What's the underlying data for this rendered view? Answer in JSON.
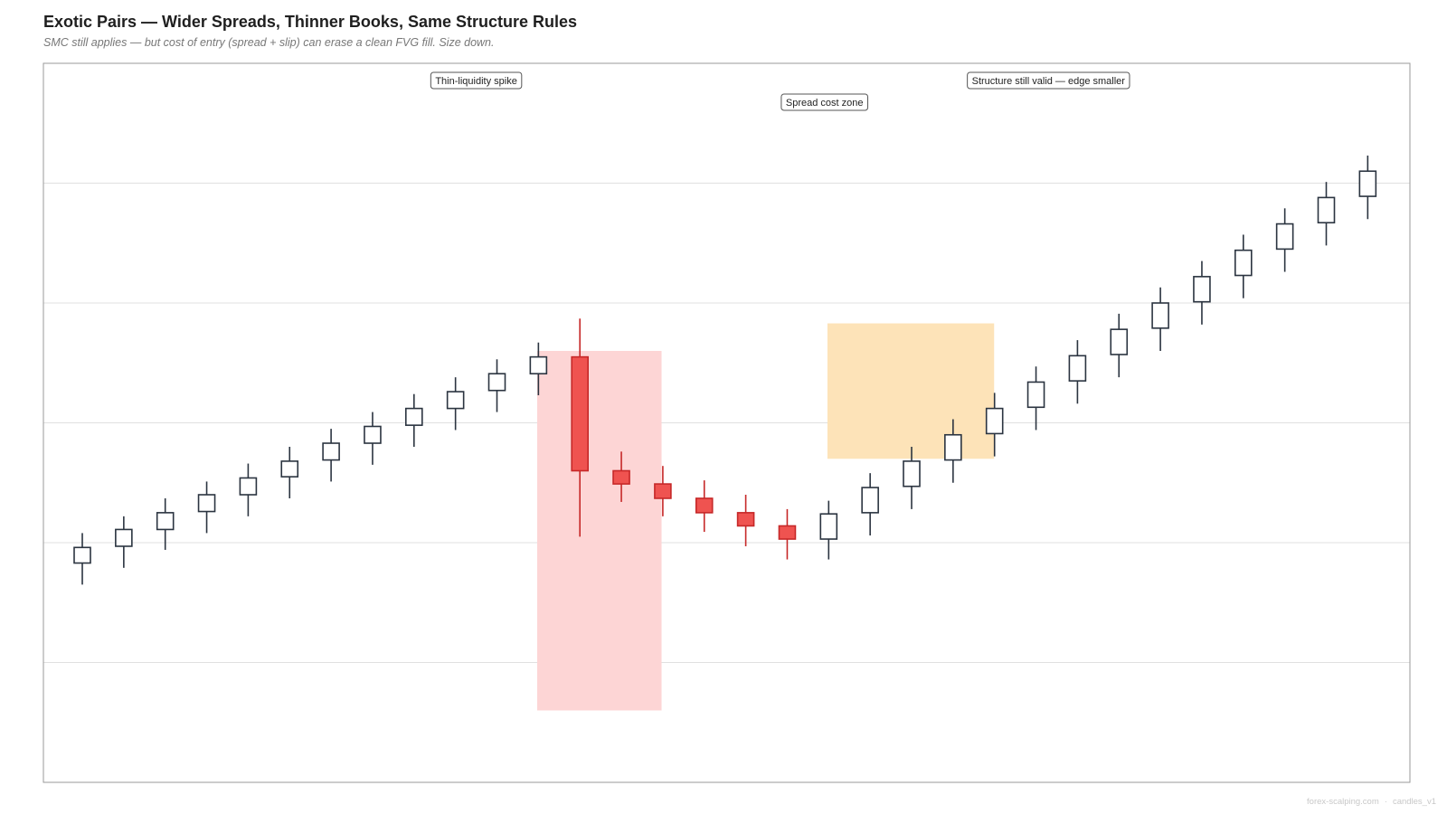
{
  "header": {
    "title": "Exotic Pairs — Wider Spreads, Thinner Books, Same Structure Rules",
    "subtitle": "SMC still applies — but cost of entry (spread + slip) can erase a clean FVG fill. Size down."
  },
  "footer": {
    "site": "forex-scalping.com",
    "tag": "candles_v1"
  },
  "colors": {
    "bull_body": "#ffffff",
    "bear_body": "#ef5350",
    "bull_stroke": "#2b3440",
    "bear_stroke": "#c62828",
    "spike_zone": "#fdd5d5",
    "spread_zone": "#fde3b8",
    "grid": "#e0e0e0",
    "frame": "#9a9a9a"
  },
  "chart_data": {
    "type": "candlestick",
    "title": "Exotic Pairs — Wider Spreads, Thinner Books, Same Structure Rules",
    "subtitle": "SMC still applies — but cost of entry (spread + slip) can erase a clean FVG fill. Size down.",
    "ylim": [
      0,
      6
    ],
    "grid": {
      "horizontal": true,
      "vertical": false
    },
    "y_gridlines": [
      1,
      2,
      3,
      4,
      5
    ],
    "candles": [
      {
        "i": 0,
        "o": 1.83,
        "h": 2.08,
        "l": 1.65,
        "c": 1.96
      },
      {
        "i": 1,
        "o": 1.97,
        "h": 2.22,
        "l": 1.79,
        "c": 2.11
      },
      {
        "i": 2,
        "o": 2.11,
        "h": 2.37,
        "l": 1.94,
        "c": 2.25
      },
      {
        "i": 3,
        "o": 2.26,
        "h": 2.51,
        "l": 2.08,
        "c": 2.4
      },
      {
        "i": 4,
        "o": 2.4,
        "h": 2.66,
        "l": 2.22,
        "c": 2.54
      },
      {
        "i": 5,
        "o": 2.55,
        "h": 2.8,
        "l": 2.37,
        "c": 2.68
      },
      {
        "i": 6,
        "o": 2.69,
        "h": 2.95,
        "l": 2.51,
        "c": 2.83
      },
      {
        "i": 7,
        "o": 2.83,
        "h": 3.09,
        "l": 2.65,
        "c": 2.97
      },
      {
        "i": 8,
        "o": 2.98,
        "h": 3.24,
        "l": 2.8,
        "c": 3.12
      },
      {
        "i": 9,
        "o": 3.12,
        "h": 3.38,
        "l": 2.94,
        "c": 3.26
      },
      {
        "i": 10,
        "o": 3.27,
        "h": 3.53,
        "l": 3.09,
        "c": 3.41
      },
      {
        "i": 11,
        "o": 3.41,
        "h": 3.67,
        "l": 3.23,
        "c": 3.55
      },
      {
        "i": 12,
        "o": 3.55,
        "h": 3.87,
        "l": 2.05,
        "c": 2.6
      },
      {
        "i": 13,
        "o": 2.6,
        "h": 2.76,
        "l": 2.34,
        "c": 2.49
      },
      {
        "i": 14,
        "o": 2.49,
        "h": 2.64,
        "l": 2.22,
        "c": 2.37
      },
      {
        "i": 15,
        "o": 2.37,
        "h": 2.52,
        "l": 2.09,
        "c": 2.25
      },
      {
        "i": 16,
        "o": 2.25,
        "h": 2.4,
        "l": 1.97,
        "c": 2.14
      },
      {
        "i": 17,
        "o": 2.14,
        "h": 2.28,
        "l": 1.86,
        "c": 2.03
      },
      {
        "i": 18,
        "o": 2.03,
        "h": 2.35,
        "l": 1.86,
        "c": 2.24
      },
      {
        "i": 19,
        "o": 2.25,
        "h": 2.58,
        "l": 2.06,
        "c": 2.46
      },
      {
        "i": 20,
        "o": 2.47,
        "h": 2.8,
        "l": 2.28,
        "c": 2.68
      },
      {
        "i": 21,
        "o": 2.69,
        "h": 3.03,
        "l": 2.5,
        "c": 2.9
      },
      {
        "i": 22,
        "o": 2.91,
        "h": 3.25,
        "l": 2.72,
        "c": 3.12
      },
      {
        "i": 23,
        "o": 3.13,
        "h": 3.47,
        "l": 2.94,
        "c": 3.34
      },
      {
        "i": 24,
        "o": 3.35,
        "h": 3.69,
        "l": 3.16,
        "c": 3.56
      },
      {
        "i": 25,
        "o": 3.57,
        "h": 3.91,
        "l": 3.38,
        "c": 3.78
      },
      {
        "i": 26,
        "o": 3.79,
        "h": 4.13,
        "l": 3.6,
        "c": 4.0
      },
      {
        "i": 27,
        "o": 4.01,
        "h": 4.35,
        "l": 3.82,
        "c": 4.22
      },
      {
        "i": 28,
        "o": 4.23,
        "h": 4.57,
        "l": 4.04,
        "c": 4.44
      },
      {
        "i": 29,
        "o": 4.45,
        "h": 4.79,
        "l": 4.26,
        "c": 4.66
      },
      {
        "i": 30,
        "o": 4.67,
        "h": 5.01,
        "l": 4.48,
        "c": 4.88
      },
      {
        "i": 31,
        "o": 4.89,
        "h": 5.23,
        "l": 4.7,
        "c": 5.1
      }
    ],
    "zones": [
      {
        "name": "Thin-liquidity spike",
        "x_from": 10.97,
        "x_to": 13.97,
        "y_from": 0.6,
        "y_to": 3.6,
        "color": "#fdd5d5"
      },
      {
        "name": "Spread cost zone",
        "x_from": 17.97,
        "x_to": 21.99,
        "y_from": 2.7,
        "y_to": 3.83,
        "color": "#fde3b8"
      }
    ],
    "annotations": [
      {
        "text": "Thin-liquidity spike",
        "x": 9.5,
        "row": 1
      },
      {
        "text": "Spread cost zone",
        "x": 17.9,
        "row": 2
      },
      {
        "text": "Structure still valid — edge smaller",
        "x": 23.3,
        "row": 1
      }
    ]
  }
}
